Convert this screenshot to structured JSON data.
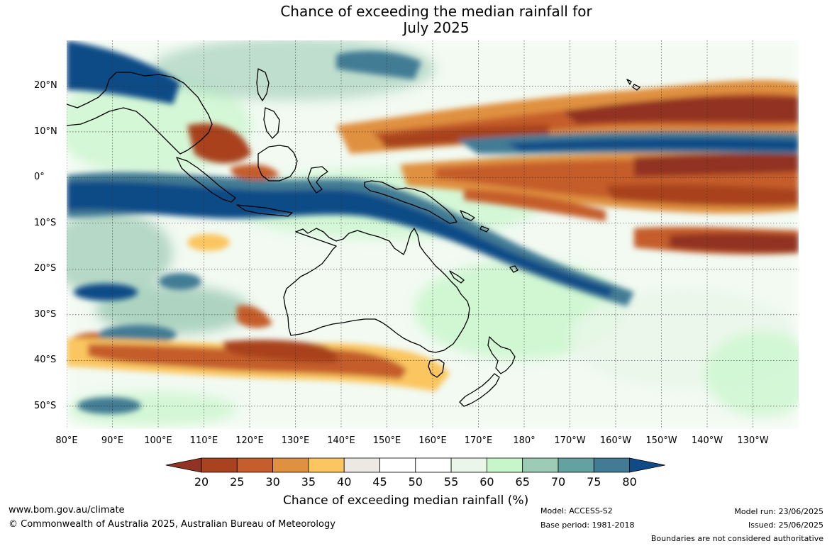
{
  "title_line1": "Chance of exceeding the median rainfall for",
  "title_line2": "July 2025",
  "map": {
    "lat_labels": [
      "20°N",
      "10°N",
      "0°",
      "10°S",
      "20°S",
      "30°S",
      "40°S",
      "50°S"
    ],
    "lat_values": [
      20,
      10,
      0,
      -10,
      -20,
      -30,
      -40,
      -50
    ],
    "lon_labels": [
      "80°E",
      "90°E",
      "100°E",
      "110°E",
      "120°E",
      "130°E",
      "140°E",
      "150°E",
      "160°E",
      "170°E",
      "180°",
      "170°W",
      "160°W",
      "150°W",
      "140°W",
      "130°W"
    ],
    "lon_values": [
      80,
      90,
      100,
      110,
      120,
      130,
      140,
      150,
      160,
      170,
      180,
      190,
      200,
      210,
      220,
      230
    ],
    "lon_range": [
      80,
      240
    ],
    "lat_range": [
      -55,
      30
    ],
    "regions": [
      {
        "name": "australia",
        "level": 45
      },
      {
        "name": "southern-australia-band",
        "level": 25
      },
      {
        "name": "png-solomons-band",
        "level": 80
      },
      {
        "name": "north-pacific-dry-band",
        "level": 20
      },
      {
        "name": "equatorial-wet-band",
        "level": 80
      },
      {
        "name": "south-pacific-dry-band",
        "level": 25
      },
      {
        "name": "new-zealand",
        "level": 50
      }
    ]
  },
  "colorbar": {
    "ticks": [
      "20",
      "25",
      "30",
      "35",
      "40",
      "45",
      "50",
      "55",
      "60",
      "65",
      "70",
      "75",
      "80"
    ],
    "colors": [
      "#a9421f",
      "#c55d2c",
      "#e0913f",
      "#fbc660",
      "#ece9e4",
      "#ffffff",
      "#ffffff",
      "#eaf6ea",
      "#c8f6cb",
      "#9dcbb5",
      "#63a2a1",
      "#437b94"
    ],
    "under_color": "#913322",
    "over_color": "#104b87",
    "label": "Chance of exceeding median rainfall (%)"
  },
  "footer": {
    "website": "www.bom.gov.au/climate",
    "copyright": "© Commonwealth of Australia 2025, Australian Bureau of Meteorology",
    "model": "Model: ACCESS-S2",
    "base_period": "Base period: 1981-2018",
    "model_run": "Model run: 23/06/2025",
    "issued": "Issued: 25/06/2025",
    "disclaimer": "Boundaries are not considered authoritative"
  }
}
